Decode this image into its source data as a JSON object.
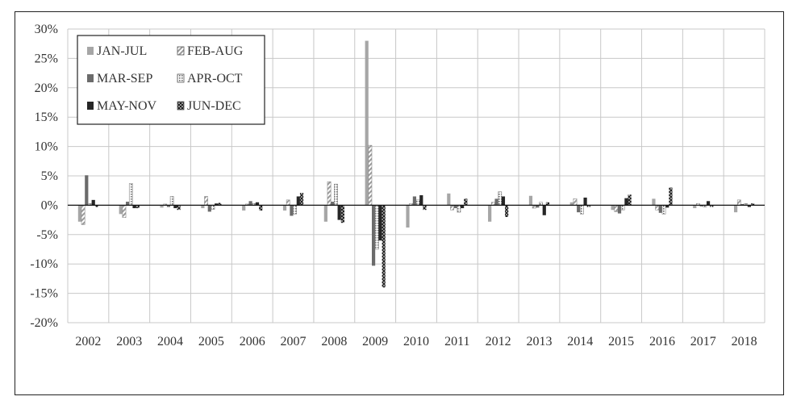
{
  "chart_data": {
    "type": "bar",
    "title": "",
    "xlabel": "",
    "ylabel": "",
    "ylim": [
      -20,
      30
    ],
    "y_ticks": [
      "30%",
      "25%",
      "20%",
      "15%",
      "10%",
      "5%",
      "0%",
      "-5%",
      "-10%",
      "-15%",
      "-20%"
    ],
    "grid": "on",
    "legend_position": "top-left",
    "categories": [
      "2002",
      "2003",
      "2004",
      "2005",
      "2006",
      "2007",
      "2008",
      "2009",
      "2010",
      "2011",
      "2012",
      "2013",
      "2014",
      "2015",
      "2016",
      "2017",
      "2018"
    ],
    "series": [
      {
        "name": "JAN-JUL",
        "pattern": "solid-light",
        "color": "#a6a6a6",
        "values": [
          -2.8,
          -1.5,
          -0.4,
          -0.5,
          -0.9,
          -0.9,
          -2.8,
          28.0,
          -3.8,
          2.0,
          -2.8,
          1.6,
          0.5,
          -0.8,
          1.1,
          -0.5,
          -1.2
        ]
      },
      {
        "name": "FEB-AUG",
        "pattern": "diag-hatch",
        "color": "#a6a6a6",
        "values": [
          -3.3,
          -2.1,
          0.2,
          1.5,
          0.2,
          0.9,
          4.0,
          10.2,
          0.3,
          -0.8,
          0.5,
          -0.5,
          1.1,
          -1.1,
          -0.8,
          0.3,
          0.9
        ]
      },
      {
        "name": "MAR-SEP",
        "pattern": "solid-medium",
        "color": "#6e6e6e",
        "values": [
          5.1,
          0.6,
          -0.3,
          -1.1,
          0.7,
          -1.8,
          0.6,
          -10.3,
          1.5,
          -0.5,
          1.1,
          -0.4,
          -1.2,
          -1.4,
          -1.3,
          -0.2,
          0.2
        ]
      },
      {
        "name": "APR-OCT",
        "pattern": "dotted",
        "color": "#8a8a8a",
        "values": [
          0.3,
          3.7,
          1.5,
          -0.7,
          0.3,
          -1.5,
          3.6,
          -7.5,
          0.9,
          -1.2,
          2.3,
          0.5,
          -1.5,
          -0.8,
          -1.5,
          -0.3,
          0.3
        ]
      },
      {
        "name": "MAY-NOV",
        "pattern": "solid-dark",
        "color": "#262626",
        "values": [
          0.9,
          -0.5,
          -0.5,
          0.3,
          0.5,
          1.5,
          -2.5,
          -6.0,
          1.7,
          -0.5,
          1.5,
          -1.7,
          1.3,
          1.2,
          -0.4,
          0.7,
          -0.3
        ]
      },
      {
        "name": "JUN-DEC",
        "pattern": "crosshatch",
        "color": "#262626",
        "values": [
          -0.3,
          -0.5,
          -0.8,
          0.4,
          -0.9,
          2.1,
          -3.0,
          -14.0,
          -0.8,
          1.1,
          -2.0,
          0.5,
          -0.3,
          1.8,
          3.0,
          -0.3,
          0.3
        ]
      }
    ]
  }
}
